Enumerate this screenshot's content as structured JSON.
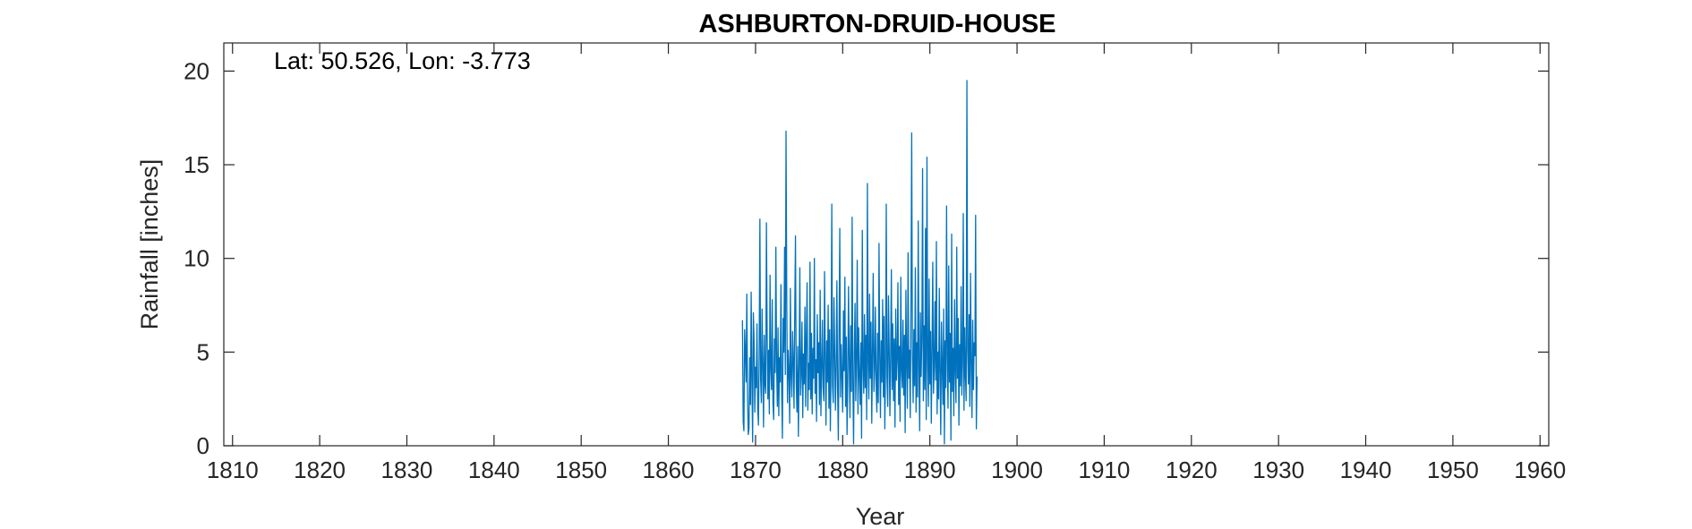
{
  "chart_data": {
    "type": "line",
    "title": "ASHBURTON-DRUID-HOUSE",
    "annotation": "Lat: 50.526, Lon: -3.773",
    "xlabel": "Year",
    "ylabel": "Rainfall [inches]",
    "xlim": [
      1809,
      1961
    ],
    "ylim": [
      0,
      21.5
    ],
    "x_ticks": [
      1810,
      1820,
      1830,
      1840,
      1850,
      1860,
      1870,
      1880,
      1890,
      1900,
      1910,
      1920,
      1930,
      1940,
      1950,
      1960
    ],
    "y_ticks": [
      0,
      5,
      10,
      15,
      20
    ],
    "grid": false,
    "line_color": "#0072BD",
    "series": [
      {
        "x_start": 1868.5,
        "x_step": 0.08333,
        "values": [
          6.7,
          1.3,
          0.8,
          6.2,
          5.0,
          3.4,
          8.1,
          2.6,
          0.6,
          0.9,
          4.7,
          2.2,
          8.2,
          3.5,
          0.2,
          7.1,
          5.6,
          1.8,
          4.2,
          3.1,
          6.5,
          2.0,
          1.1,
          4.8,
          12.1,
          3.6,
          2.3,
          7.3,
          4.4,
          1.0,
          5.9,
          3.3,
          2.8,
          11.9,
          6.0,
          2.5,
          5.1,
          1.7,
          9.1,
          4.1,
          3.0,
          7.8,
          2.2,
          1.4,
          5.7,
          3.9,
          10.6,
          4.4,
          2.1,
          6.3,
          1.6,
          4.7,
          3.4,
          8.6,
          2.9,
          0.4,
          6.8,
          5.0,
          10.6,
          3.8,
          16.8,
          7.7,
          2.3,
          5.1,
          4.0,
          1.2,
          8.4,
          3.7,
          2.6,
          6.1,
          4.5,
          2.0,
          7.2,
          11.2,
          3.5,
          1.8,
          5.3,
          0.5,
          4.2,
          9.5,
          2.7,
          3.9,
          6.6,
          1.5,
          4.9,
          3.3,
          7.4,
          2.1,
          5.8,
          8.7,
          1.9,
          4.4,
          3.0,
          9.8,
          2.5,
          6.0,
          1.7,
          5.2,
          3.6,
          10.0,
          2.8,
          4.6,
          1.3,
          7.0,
          3.9,
          5.5,
          2.2,
          8.3,
          1.6,
          4.1,
          6.7,
          3.1,
          2.4,
          9.3,
          4.8,
          1.1,
          5.6,
          3.4,
          7.5,
          2.0,
          6.2,
          0.8,
          4.5,
          12.9,
          3.2,
          2.3,
          7.9,
          5.0,
          1.9,
          4.3,
          8.8,
          3.0,
          0.3,
          6.1,
          11.6,
          2.6,
          5.4,
          3.7,
          1.8,
          7.2,
          4.0,
          9.0,
          2.1,
          5.8,
          0.6,
          3.5,
          8.5,
          4.6,
          1.5,
          6.4,
          2.9,
          12.2,
          3.3,
          0.1,
          5.1,
          7.6,
          2.4,
          4.7,
          9.9,
          1.7,
          6.3,
          3.8,
          2.2,
          5.5,
          0.4,
          11.5,
          4.2,
          2.8,
          7.0,
          3.1,
          5.9,
          1.4,
          14.0,
          4.4,
          2.5,
          8.1,
          3.6,
          6.6,
          1.2,
          5.0,
          9.2,
          2.9,
          4.1,
          7.4,
          3.3,
          1.8,
          6.0,
          2.3,
          10.8,
          4.9,
          1.5,
          5.6,
          3.4,
          7.8,
          2.6,
          6.9,
          0.9,
          4.3,
          12.9,
          3.7,
          2.1,
          8.0,
          5.2,
          1.6,
          4.8,
          9.4,
          3.0,
          6.5,
          2.4,
          5.7,
          1.0,
          7.3,
          3.5,
          4.6,
          8.7,
          2.2,
          5.3,
          1.3,
          9.0,
          4.0,
          3.1,
          6.7,
          2.7,
          5.9,
          0.7,
          8.3,
          4.4,
          2.0,
          10.3,
          3.6,
          5.1,
          1.5,
          7.6,
          16.7,
          4.8,
          2.3,
          6.2,
          3.2,
          9.5,
          1.8,
          5.5,
          2.6,
          12.0,
          4.1,
          0.8,
          7.1,
          3.7,
          5.8,
          14.8,
          2.4,
          6.4,
          3.0,
          11.6,
          1.4,
          15.4,
          4.6,
          2.1,
          8.9,
          3.3,
          6.1,
          1.2,
          5.3,
          9.8,
          2.8,
          4.2,
          7.7,
          3.5,
          10.9,
          1.7,
          5.0,
          2.5,
          8.4,
          3.9,
          0.6,
          6.6,
          4.3,
          2.2,
          7.3,
          0.1,
          5.6,
          3.1,
          12.8,
          4.7,
          2.0,
          9.6,
          3.4,
          6.0,
          0.3,
          11.3,
          2.9,
          5.2,
          1.6,
          7.8,
          4.0,
          2.3,
          10.6,
          3.6,
          6.8,
          1.1,
          5.4,
          3.2,
          8.5,
          2.7,
          4.5,
          12.4,
          1.9,
          6.3,
          3.8,
          2.4,
          19.5,
          5.1,
          3.3,
          7.0,
          2.1,
          9.2,
          4.4,
          1.5,
          6.7,
          3.0,
          5.5,
          4.8,
          12.3,
          0.9,
          3.7
        ]
      }
    ]
  }
}
